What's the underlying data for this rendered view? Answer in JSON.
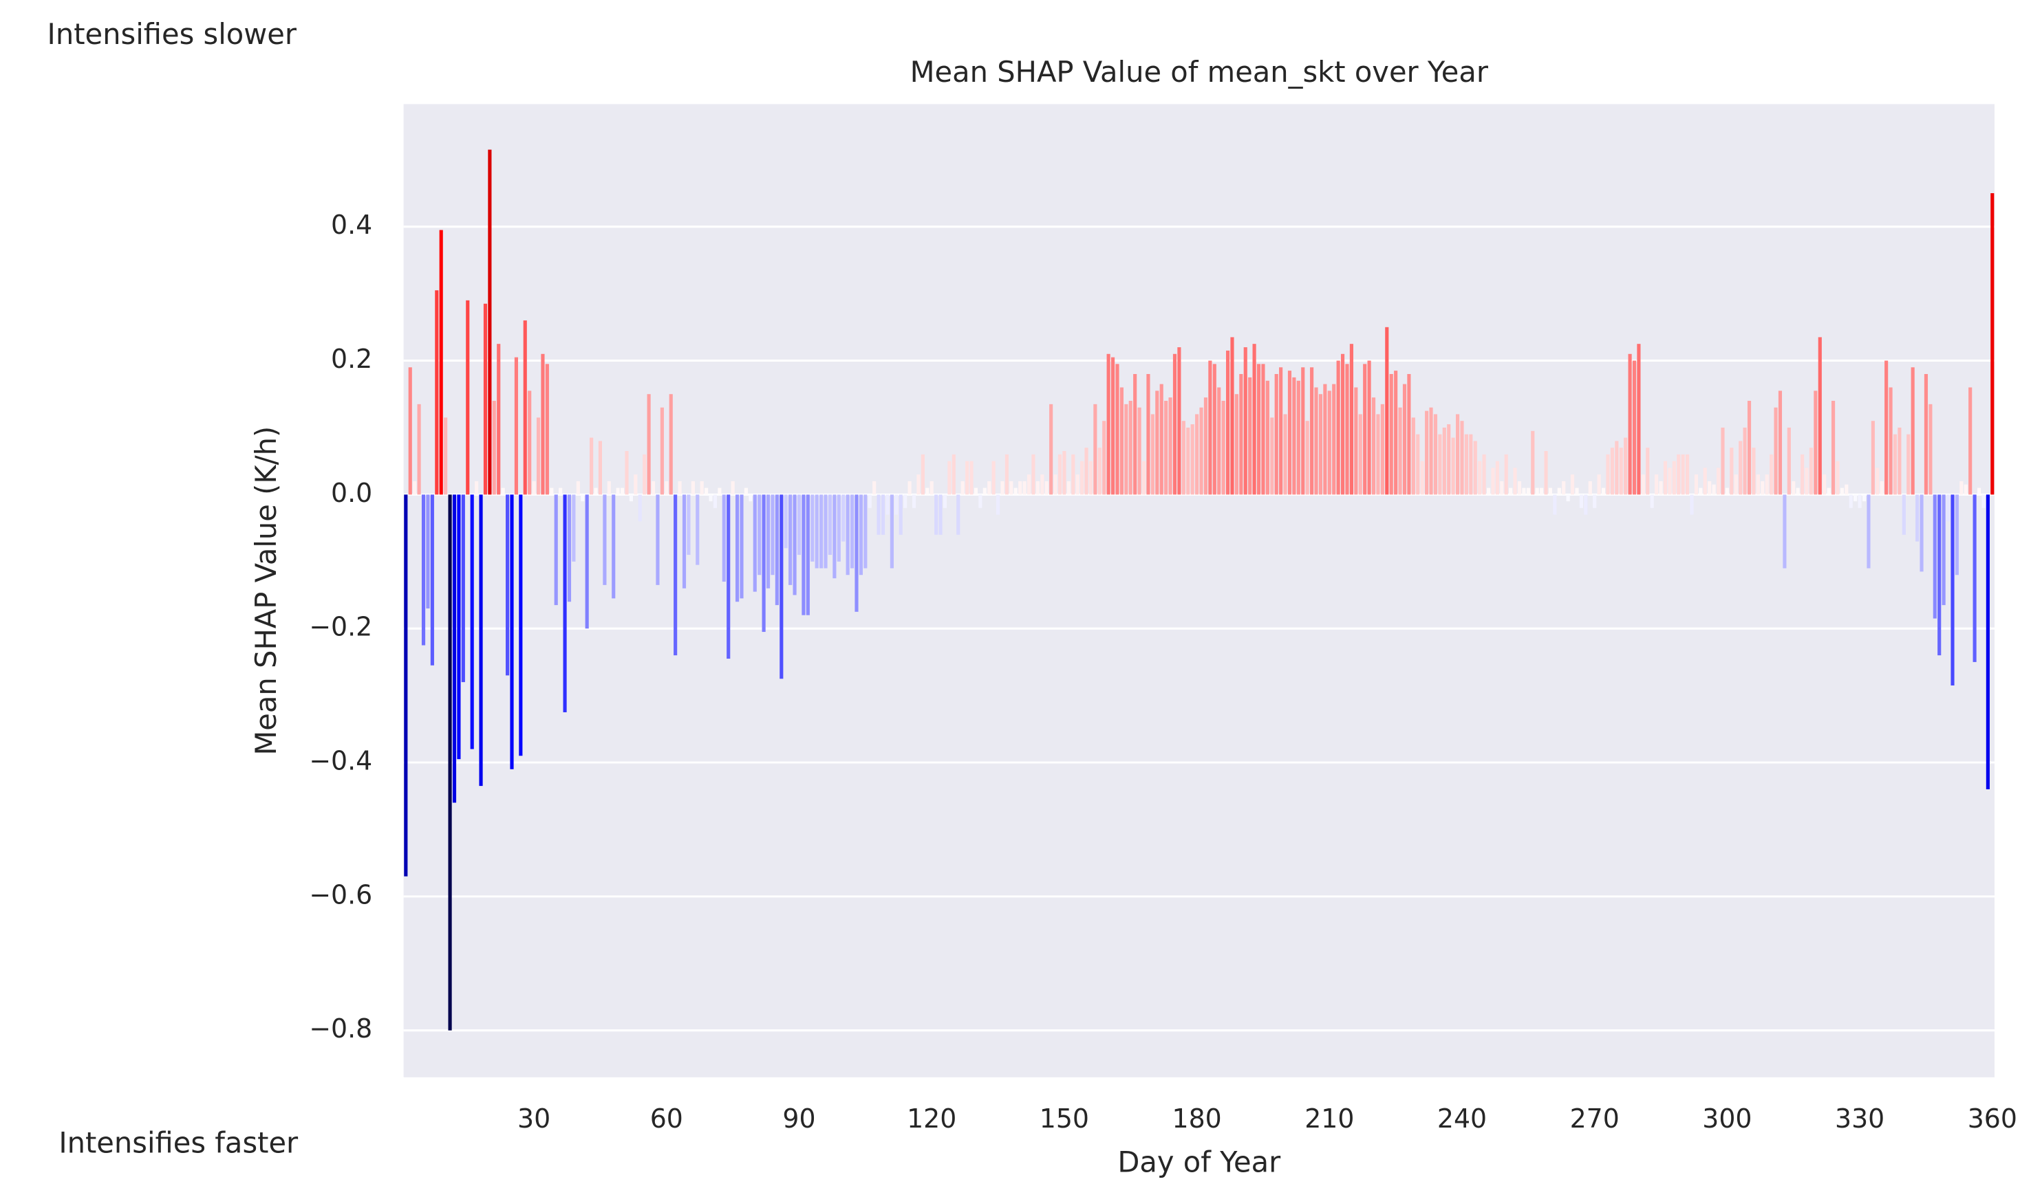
{
  "chart_data": {
    "type": "bar",
    "title": "Mean SHAP Value of mean_skt over Year",
    "xlabel": "Day of Year",
    "ylabel": "Mean SHAP Value (K/h)",
    "annotations": [
      "Intensifies slower",
      "Intensifies faster"
    ],
    "colormap": "seismic",
    "grid": true,
    "xlim": [
      0.5,
      360.5
    ],
    "ylim": [
      -0.87,
      0.583
    ],
    "xticks": [
      30,
      60,
      90,
      120,
      150,
      180,
      210,
      240,
      270,
      300,
      330,
      360
    ],
    "yticks": [
      {
        "value": -0.8,
        "label": "−0.8"
      },
      {
        "value": -0.6,
        "label": "−0.6"
      },
      {
        "value": -0.4,
        "label": "−0.4"
      },
      {
        "value": -0.2,
        "label": "−0.2"
      },
      {
        "value": 0,
        "label": "0.0"
      },
      0.2,
      0.4
    ],
    "x": [
      1,
      2,
      3,
      4,
      5,
      6,
      7,
      8,
      9,
      10,
      11,
      12,
      13,
      14,
      15,
      16,
      17,
      18,
      19,
      20,
      21,
      22,
      23,
      24,
      25,
      26,
      27,
      28,
      29,
      30,
      31,
      32,
      33,
      34,
      35,
      36,
      37,
      38,
      39,
      40,
      41,
      42,
      43,
      44,
      45,
      46,
      47,
      48,
      49,
      50,
      51,
      52,
      53,
      54,
      55,
      56,
      57,
      58,
      59,
      60,
      61,
      62,
      63,
      64,
      65,
      66,
      67,
      68,
      69,
      70,
      71,
      72,
      73,
      74,
      75,
      76,
      77,
      78,
      79,
      80,
      81,
      82,
      83,
      84,
      85,
      86,
      87,
      88,
      89,
      90,
      91,
      92,
      93,
      94,
      95,
      96,
      97,
      98,
      99,
      100,
      101,
      102,
      103,
      104,
      105,
      106,
      107,
      108,
      109,
      110,
      111,
      112,
      113,
      114,
      115,
      116,
      117,
      118,
      119,
      120,
      121,
      122,
      123,
      124,
      125,
      126,
      127,
      128,
      129,
      130,
      131,
      132,
      133,
      134,
      135,
      136,
      137,
      138,
      139,
      140,
      141,
      142,
      143,
      144,
      145,
      146,
      147,
      148,
      149,
      150,
      151,
      152,
      153,
      154,
      155,
      156,
      157,
      158,
      159,
      160,
      161,
      162,
      163,
      164,
      165,
      166,
      167,
      168,
      169,
      170,
      171,
      172,
      173,
      174,
      175,
      176,
      177,
      178,
      179,
      180,
      181,
      182,
      183,
      184,
      185,
      186,
      187,
      188,
      189,
      190,
      191,
      192,
      193,
      194,
      195,
      196,
      197,
      198,
      199,
      200,
      201,
      202,
      203,
      204,
      205,
      206,
      207,
      208,
      209,
      210,
      211,
      212,
      213,
      214,
      215,
      216,
      217,
      218,
      219,
      220,
      221,
      222,
      223,
      224,
      225,
      226,
      227,
      228,
      229,
      230,
      231,
      232,
      233,
      234,
      235,
      236,
      237,
      238,
      239,
      240,
      241,
      242,
      243,
      244,
      245,
      246,
      247,
      248,
      249,
      250,
      251,
      252,
      253,
      254,
      255,
      256,
      257,
      258,
      259,
      260,
      261,
      262,
      263,
      264,
      265,
      266,
      267,
      268,
      269,
      270,
      271,
      272,
      273,
      274,
      275,
      276,
      277,
      278,
      279,
      280,
      281,
      282,
      283,
      284,
      285,
      286,
      287,
      288,
      289,
      290,
      291,
      292,
      293,
      294,
      295,
      296,
      297,
      298,
      299,
      300,
      301,
      302,
      303,
      304,
      305,
      306,
      307,
      308,
      309,
      310,
      311,
      312,
      313,
      314,
      315,
      316,
      317,
      318,
      319,
      320,
      321,
      322,
      323,
      324,
      325,
      326,
      327,
      328,
      329,
      330,
      331,
      332,
      333,
      334,
      335,
      336,
      337,
      338,
      339,
      340,
      341,
      342,
      343,
      344,
      345,
      346,
      347,
      348,
      349,
      350,
      351,
      352,
      353,
      354,
      355,
      356,
      357,
      358,
      359,
      360
    ],
    "values": [
      -0.57,
      0.19,
      0.02,
      0.135,
      -0.225,
      -0.17,
      -0.255,
      0.305,
      0.395,
      0.115,
      -0.8,
      -0.46,
      -0.395,
      -0.28,
      0.29,
      -0.38,
      0.02,
      -0.435,
      0.285,
      0.515,
      0.14,
      0.225,
      0.01,
      -0.27,
      -0.41,
      0.205,
      -0.39,
      0.26,
      0.155,
      0.02,
      0.115,
      0.21,
      0.195,
      0.01,
      -0.165,
      0.01,
      -0.325,
      -0.16,
      -0.1,
      0.02,
      -0.01,
      -0.2,
      0.085,
      0.01,
      0.08,
      -0.135,
      0.02,
      -0.155,
      0.01,
      0.01,
      0.065,
      -0.01,
      0.03,
      -0.04,
      0.06,
      0.15,
      0.02,
      -0.135,
      0.13,
      0.02,
      0.15,
      -0.24,
      0.02,
      -0.14,
      -0.09,
      0.02,
      -0.105,
      0.02,
      0.01,
      -0.01,
      -0.02,
      0.01,
      -0.13,
      -0.245,
      0.02,
      -0.16,
      -0.155,
      0.01,
      -0.01,
      -0.145,
      -0.12,
      -0.205,
      -0.14,
      -0.12,
      -0.165,
      -0.275,
      -0.08,
      -0.135,
      -0.15,
      -0.09,
      -0.18,
      -0.18,
      -0.1,
      -0.11,
      -0.11,
      -0.11,
      -0.09,
      -0.125,
      -0.1,
      -0.07,
      -0.12,
      -0.11,
      -0.175,
      -0.12,
      -0.11,
      -0.02,
      0.02,
      -0.06,
      -0.06,
      -0.03,
      -0.11,
      -0.03,
      -0.06,
      -0.02,
      0.02,
      -0.02,
      0.03,
      0.06,
      0.01,
      0.02,
      -0.06,
      -0.06,
      -0.02,
      0.05,
      0.06,
      -0.06,
      0.02,
      0.05,
      0.05,
      0.01,
      -0.02,
      0.01,
      0.02,
      0.05,
      -0.03,
      0.02,
      0.06,
      0.02,
      0.01,
      0.02,
      0.02,
      0.03,
      0.06,
      0.02,
      0.03,
      0.02,
      0.135,
      0.03,
      0.06,
      0.065,
      0.02,
      0.06,
      0.03,
      0.05,
      0.07,
      0.05,
      0.135,
      0.07,
      0.11,
      0.21,
      0.205,
      0.195,
      0.16,
      0.135,
      0.14,
      0.18,
      0.13,
      0.05,
      0.18,
      0.12,
      0.155,
      0.165,
      0.14,
      0.145,
      0.21,
      0.22,
      0.11,
      0.1,
      0.105,
      0.12,
      0.13,
      0.145,
      0.2,
      0.195,
      0.16,
      0.14,
      0.215,
      0.235,
      0.15,
      0.18,
      0.22,
      0.175,
      0.225,
      0.195,
      0.195,
      0.17,
      0.115,
      0.18,
      0.19,
      0.12,
      0.185,
      0.175,
      0.17,
      0.19,
      0.11,
      0.19,
      0.16,
      0.15,
      0.165,
      0.155,
      0.165,
      0.2,
      0.21,
      0.195,
      0.225,
      0.16,
      0.12,
      0.195,
      0.2,
      0.145,
      0.12,
      0.135,
      0.25,
      0.18,
      0.185,
      0.13,
      0.165,
      0.18,
      0.115,
      0.09,
      0.05,
      0.125,
      0.13,
      0.12,
      0.09,
      0.1,
      0.105,
      0.085,
      0.12,
      0.11,
      0.09,
      0.09,
      0.08,
      0.05,
      0.06,
      0.01,
      0.04,
      0.05,
      0.02,
      0.06,
      0.01,
      0.04,
      0.02,
      0.01,
      0.01,
      0.095,
      0.01,
      0.01,
      0.065,
      0.01,
      -0.03,
      0.01,
      0.02,
      -0.01,
      0.03,
      0.01,
      -0.02,
      -0.03,
      0.02,
      -0.02,
      0.03,
      0.01,
      0.06,
      0.07,
      0.08,
      0.07,
      0.085,
      0.21,
      0.2,
      0.225,
      0.03,
      0.07,
      -0.02,
      0.03,
      0.02,
      0.05,
      0.04,
      0.05,
      0.06,
      0.06,
      0.06,
      -0.03,
      0.03,
      0.01,
      0.04,
      0.02,
      0.015,
      0.04,
      0.1,
      0.01,
      0.07,
      0.03,
      0.08,
      0.1,
      0.14,
      0.07,
      0.03,
      0.02,
      0.03,
      0.06,
      0.13,
      0.155,
      -0.11,
      0.1,
      0.02,
      0.01,
      0.06,
      0.04,
      0.07,
      0.155,
      0.235,
      0.03,
      0.01,
      0.14,
      0.05,
      0.01,
      0.015,
      -0.02,
      -0.01,
      -0.02,
      -0.01,
      -0.11,
      0.11,
      0.04,
      0.02,
      0.2,
      0.16,
      0.09,
      0.1,
      -0.06,
      0.09,
      0.19,
      -0.07,
      -0.115,
      0.18,
      0.135,
      -0.185,
      -0.24,
      -0.165,
      -0.04,
      -0.285,
      -0.12,
      0.02,
      0.015,
      0.16,
      -0.25,
      0.01,
      -0.02,
      -0.44,
      0.45
    ]
  }
}
